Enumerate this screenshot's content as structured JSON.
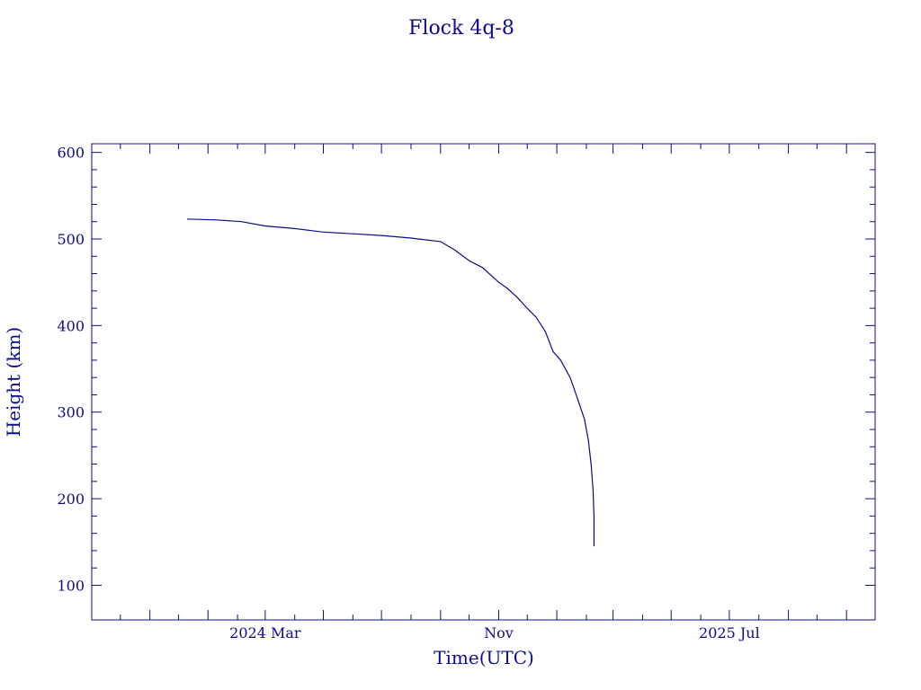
{
  "chart_data": {
    "type": "line",
    "title": "Flock 4q-8",
    "xlabel": "Time(UTC)",
    "ylabel": "Height (km)",
    "xlim": [
      "2023-09-01",
      "2025-12-01"
    ],
    "ylim": [
      60,
      610
    ],
    "x_ticks": [
      {
        "value": "2024-03-01",
        "label": "2024 Mar"
      },
      {
        "value": "2024-11-01",
        "label": "Nov"
      },
      {
        "value": "2025-07-01",
        "label": "2025 Jul"
      }
    ],
    "y_ticks": [
      100,
      200,
      300,
      400,
      500,
      600
    ],
    "grid": false,
    "colors": {
      "line": "#0b0b8f",
      "text": "#0b0b8f"
    },
    "series": [
      {
        "x": [
          "2023-12-10",
          "2024-01-10",
          "2024-02-05",
          "2024-03-01",
          "2024-04-01",
          "2024-05-01",
          "2024-06-01",
          "2024-07-01",
          "2024-08-01",
          "2024-09-01",
          "2024-09-15",
          "2024-10-01",
          "2024-10-15",
          "2024-11-01",
          "2024-11-10",
          "2024-11-20",
          "2024-12-01",
          "2024-12-10",
          "2024-12-20",
          "2024-12-28",
          "2025-01-05",
          "2025-01-15",
          "2025-01-22",
          "2025-01-30",
          "2025-02-03",
          "2025-02-06",
          "2025-02-08",
          "2025-02-09",
          "2025-02-09"
        ],
        "values": [
          523,
          522,
          520,
          515,
          512,
          508,
          506,
          504,
          501,
          497,
          488,
          475,
          467,
          450,
          443,
          433,
          420,
          410,
          393,
          370,
          360,
          340,
          318,
          292,
          268,
          240,
          210,
          180,
          145
        ]
      }
    ]
  }
}
